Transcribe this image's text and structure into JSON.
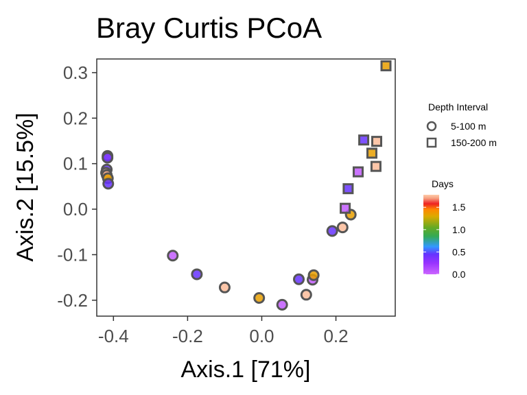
{
  "chart_data": {
    "type": "scatter",
    "title": "Bray Curtis PCoA",
    "xlabel": "Axis.1   [71%]",
    "ylabel": "Axis.2   [15.5%]",
    "xlim": [
      -0.445,
      0.36
    ],
    "ylim": [
      -0.235,
      0.33
    ],
    "xticks": [
      {
        "value": -0.4,
        "label": "-0.4"
      },
      {
        "value": -0.2,
        "label": "-0.2"
      },
      {
        "value": 0.0,
        "label": "0.0"
      },
      {
        "value": 0.2,
        "label": "0.2"
      }
    ],
    "yticks": [
      {
        "value": 0.3,
        "label": "0.3"
      },
      {
        "value": 0.2,
        "label": "0.2"
      },
      {
        "value": 0.1,
        "label": "0.1"
      },
      {
        "value": 0.0,
        "label": "0.0"
      },
      {
        "value": -0.1,
        "label": "-0.1"
      },
      {
        "value": -0.2,
        "label": "-0.2"
      }
    ],
    "grid": false,
    "shape_legend": {
      "title": "Depth Interval",
      "entries": [
        {
          "shape": "circle",
          "label": "5-100 m"
        },
        {
          "shape": "square",
          "label": "150-200 m"
        }
      ]
    },
    "color_legend": {
      "title": "Days",
      "min": 0.0,
      "max": 1.78,
      "ticks": [
        {
          "value": 0.0,
          "label": "0.0"
        },
        {
          "value": 0.5,
          "label": "0.5"
        },
        {
          "value": 1.0,
          "label": "1.0"
        },
        {
          "value": 1.5,
          "label": "1.5"
        }
      ],
      "stops": [
        {
          "value": 0.0,
          "color": "#cc66ff"
        },
        {
          "value": 0.25,
          "color": "#9933ff"
        },
        {
          "value": 0.45,
          "color": "#6633ff"
        },
        {
          "value": 0.62,
          "color": "#3399ff"
        },
        {
          "value": 0.85,
          "color": "#33aa55"
        },
        {
          "value": 1.05,
          "color": "#66aa22"
        },
        {
          "value": 1.3,
          "color": "#ddaa00"
        },
        {
          "value": 1.45,
          "color": "#ff8800"
        },
        {
          "value": 1.58,
          "color": "#ee2222"
        },
        {
          "value": 1.7,
          "color": "#f6a080"
        },
        {
          "value": 1.78,
          "color": "#ffccaa"
        }
      ]
    },
    "points": [
      {
        "x": -0.416,
        "y": 0.117,
        "shape": "circle",
        "days": 0.05
      },
      {
        "x": -0.416,
        "y": 0.113,
        "shape": "circle",
        "days": 0.4
      },
      {
        "x": -0.418,
        "y": 0.087,
        "shape": "circle",
        "days": 0.45
      },
      {
        "x": -0.42,
        "y": 0.08,
        "shape": "circle",
        "days": 1.75
      },
      {
        "x": -0.418,
        "y": 0.075,
        "shape": "circle",
        "days": 1.72
      },
      {
        "x": -0.415,
        "y": 0.068,
        "shape": "circle",
        "days": 1.35
      },
      {
        "x": -0.414,
        "y": 0.056,
        "shape": "circle",
        "days": 0.45
      },
      {
        "x": -0.24,
        "y": -0.102,
        "shape": "circle",
        "days": 0.05
      },
      {
        "x": -0.175,
        "y": -0.143,
        "shape": "circle",
        "days": 0.45
      },
      {
        "x": -0.1,
        "y": -0.172,
        "shape": "circle",
        "days": 1.75
      },
      {
        "x": -0.007,
        "y": -0.195,
        "shape": "circle",
        "days": 1.35
      },
      {
        "x": 0.055,
        "y": -0.21,
        "shape": "circle",
        "days": 0.05
      },
      {
        "x": 0.1,
        "y": -0.154,
        "shape": "circle",
        "days": 0.45
      },
      {
        "x": 0.12,
        "y": -0.188,
        "shape": "circle",
        "days": 1.75
      },
      {
        "x": 0.137,
        "y": -0.155,
        "shape": "circle",
        "days": 0.05
      },
      {
        "x": 0.14,
        "y": -0.145,
        "shape": "circle",
        "days": 1.35
      },
      {
        "x": 0.19,
        "y": -0.048,
        "shape": "circle",
        "days": 0.45
      },
      {
        "x": 0.218,
        "y": -0.04,
        "shape": "circle",
        "days": 1.75
      },
      {
        "x": 0.24,
        "y": -0.012,
        "shape": "circle",
        "days": 1.35
      },
      {
        "x": 0.225,
        "y": 0.002,
        "shape": "square",
        "days": 0.05
      },
      {
        "x": 0.233,
        "y": 0.045,
        "shape": "square",
        "days": 0.45
      },
      {
        "x": 0.26,
        "y": 0.082,
        "shape": "square",
        "days": 0.05
      },
      {
        "x": 0.275,
        "y": 0.152,
        "shape": "square",
        "days": 0.45
      },
      {
        "x": 0.297,
        "y": 0.123,
        "shape": "square",
        "days": 1.35
      },
      {
        "x": 0.308,
        "y": 0.094,
        "shape": "square",
        "days": 1.75
      },
      {
        "x": 0.31,
        "y": 0.149,
        "shape": "square",
        "days": 1.75
      },
      {
        "x": 0.335,
        "y": 0.315,
        "shape": "square",
        "days": 1.35
      }
    ]
  }
}
